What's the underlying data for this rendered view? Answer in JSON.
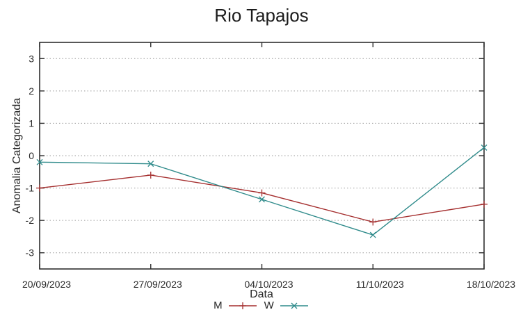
{
  "chart_data": {
    "type": "line",
    "title": "Rio Tapajos",
    "xlabel": "Data",
    "ylabel": "Anomalia Categorizada",
    "categories": [
      "20/09/2023",
      "27/09/2023",
      "04/10/2023",
      "11/10/2023",
      "18/10/2023"
    ],
    "series": [
      {
        "name": "M",
        "color": "#a52f2f",
        "marker": "plus",
        "values": [
          -1.0,
          -0.6,
          -1.15,
          -2.05,
          -1.5
        ]
      },
      {
        "name": "W",
        "color": "#2f8b8b",
        "marker": "cross",
        "values": [
          -0.2,
          -0.25,
          -1.35,
          -2.45,
          0.25
        ]
      }
    ],
    "ylim": [
      -3.5,
      3.5
    ],
    "yticks": [
      -3,
      -2,
      -1,
      0,
      1,
      2,
      3
    ],
    "grid": "horizontal-dotted",
    "legend_position": "bottom-center"
  },
  "style": {
    "background": "#ffffff",
    "axis_color": "#2e2e2e",
    "grid_color": "#9a9a9a",
    "text_color": "#2a2a2a"
  }
}
